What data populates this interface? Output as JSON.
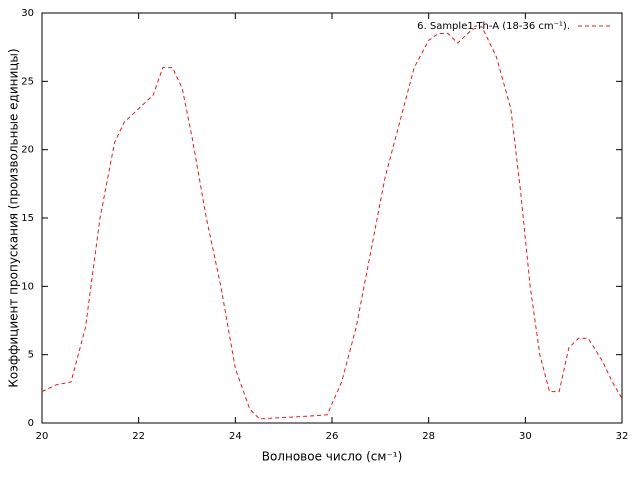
{
  "chart_data": {
    "type": "line",
    "x_label": "Волновое число (см⁻¹)",
    "y_label": "Коэффициент пропускания (произвольные единицы)",
    "x": [
      20,
      20.3,
      20.6,
      20.9,
      21.2,
      21.5,
      21.7,
      22.0,
      22.3,
      22.5,
      22.7,
      22.9,
      23.1,
      23.4,
      23.7,
      24.0,
      24.3,
      24.5,
      25.0,
      25.5,
      25.9,
      26.2,
      26.5,
      26.8,
      27.1,
      27.4,
      27.7,
      28.0,
      28.2,
      28.4,
      28.6,
      28.9,
      29.1,
      29.4,
      29.7,
      29.9,
      30.1,
      30.3,
      30.5,
      30.7,
      30.9,
      31.1,
      31.3,
      31.6,
      31.8,
      32.0
    ],
    "series": [
      {
        "name": "6. Sample1-Th-A (18-36 cm⁻¹).",
        "color": "#e41a1c",
        "values": [
          2.3,
          2.8,
          3.0,
          7,
          15,
          20.5,
          22,
          23,
          24,
          26,
          26,
          24.5,
          21,
          15,
          10,
          4,
          1,
          0.3,
          0.4,
          0.5,
          0.6,
          3,
          7,
          12.5,
          18,
          22,
          26,
          28,
          28.5,
          28.5,
          27.8,
          28.8,
          29,
          26.8,
          23,
          17,
          10,
          5,
          2.3,
          2.3,
          5.5,
          6.2,
          6.2,
          4.5,
          3,
          1.8
        ]
      }
    ],
    "xlim": [
      20,
      32
    ],
    "ylim": [
      0,
      30
    ],
    "xticks": [
      20,
      22,
      24,
      26,
      28,
      30,
      32
    ],
    "yticks": [
      0,
      5,
      10,
      15,
      20,
      25,
      30
    ],
    "legend": "top-right"
  }
}
